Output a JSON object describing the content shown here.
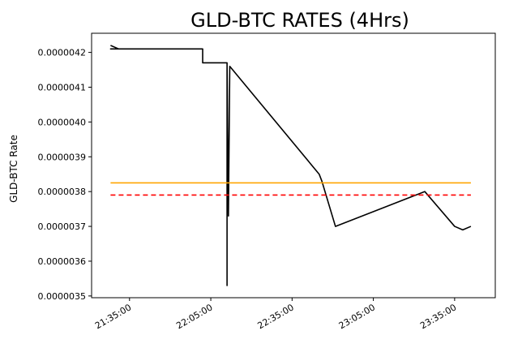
{
  "chart_data": {
    "type": "line",
    "title": "GLD-BTC RATES (4Hrs)",
    "xlabel": "",
    "ylabel": "GLD-BTC Rate",
    "x_ticks": [
      "21:35:00",
      "22:05:00",
      "22:35:00",
      "23:05:00",
      "23:35:00"
    ],
    "y_ticks": [
      "0.0000035",
      "0.0000036",
      "0.0000037",
      "0.0000038",
      "0.0000039",
      "0.0000040",
      "0.0000041",
      "0.0000042"
    ],
    "xlim": [
      "21:21:00",
      "23:50:00"
    ],
    "ylim": [
      3.495e-06,
      4.255e-06
    ],
    "grid": false,
    "legend": "none",
    "series": [
      {
        "color": "#000000",
        "style": "solid",
        "points": [
          [
            "21:28:00",
            4.22e-06
          ],
          [
            "21:31:00",
            4.21e-06
          ],
          [
            "21:28:00",
            4.21e-06
          ],
          [
            "22:02:00",
            4.21e-06
          ],
          [
            "22:02:00",
            4.17e-06
          ],
          [
            "22:11:00",
            4.17e-06
          ],
          [
            "22:11:00",
            3.53e-06
          ],
          [
            "22:11:00",
            4.17e-06
          ],
          [
            "22:11:30",
            3.73e-06
          ],
          [
            "22:12:00",
            4.16e-06
          ],
          [
            "22:45:00",
            3.85e-06
          ],
          [
            "22:46:00",
            3.83e-06
          ],
          [
            "22:51:00",
            3.7e-06
          ],
          [
            "23:24:00",
            3.8e-06
          ],
          [
            "23:35:00",
            3.7e-06
          ],
          [
            "23:38:00",
            3.69e-06
          ],
          [
            "23:41:00",
            3.7e-06
          ]
        ]
      },
      {
        "color": "#ffa500",
        "style": "solid",
        "points": [
          [
            "21:28:00",
            3.825e-06
          ],
          [
            "23:41:00",
            3.825e-06
          ]
        ]
      },
      {
        "color": "#ff0000",
        "style": "dashed",
        "points": [
          [
            "21:28:00",
            3.79e-06
          ],
          [
            "23:41:00",
            3.79e-06
          ]
        ]
      }
    ]
  }
}
